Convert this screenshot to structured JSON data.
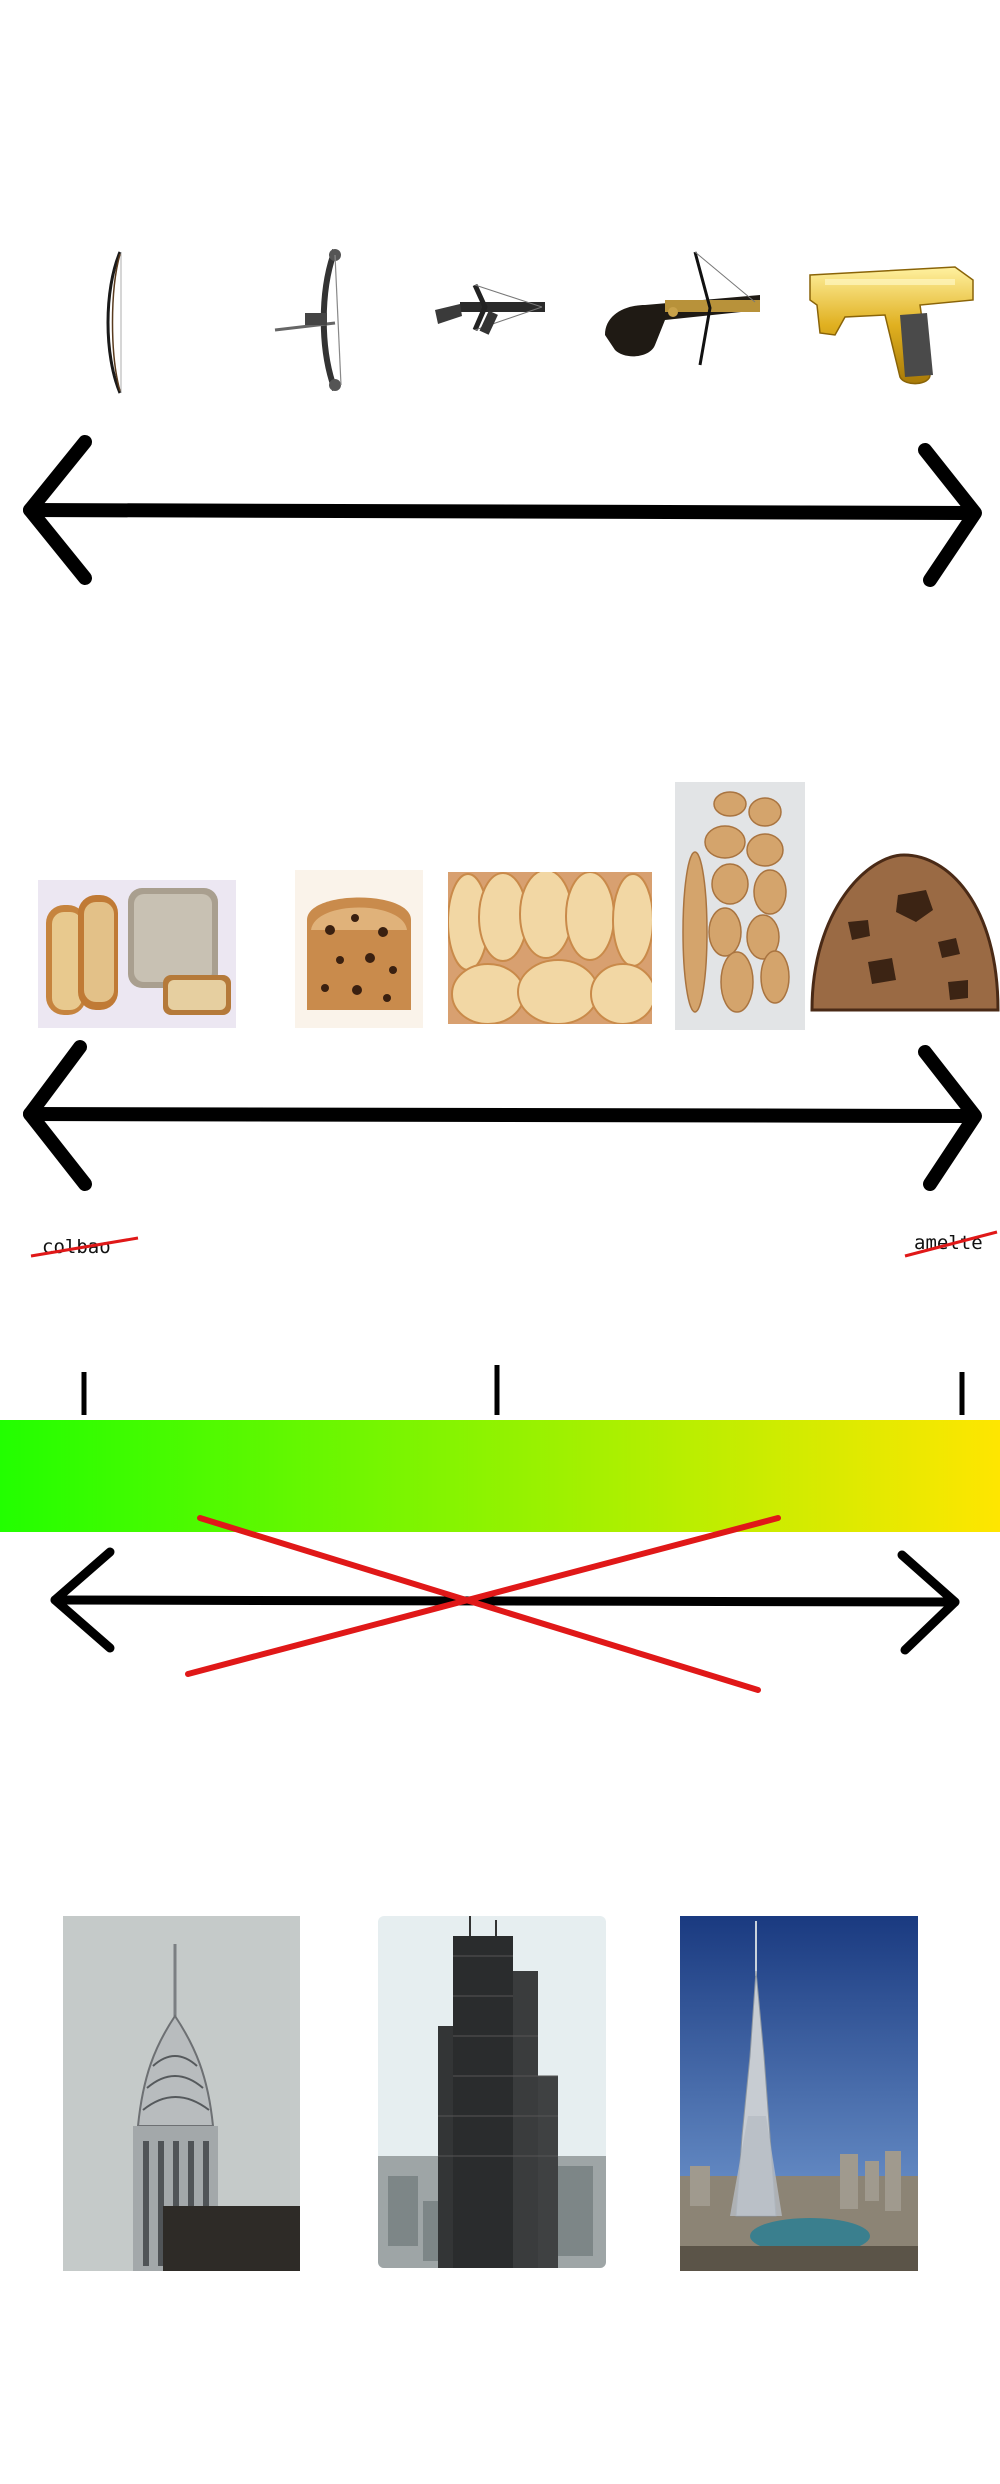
{
  "weapons": {
    "items": [
      {
        "name": "longbow"
      },
      {
        "name": "compound-bow"
      },
      {
        "name": "crossbow"
      },
      {
        "name": "pistol-crossbow"
      },
      {
        "name": "golden-pistol"
      }
    ]
  },
  "baked_goods": {
    "items": [
      {
        "name": "sliced-bread"
      },
      {
        "name": "quick-bread-loaf"
      },
      {
        "name": "biscuits"
      },
      {
        "name": "crackers"
      },
      {
        "name": "cookie"
      }
    ],
    "left_label": "colbao",
    "right_label": "amelte"
  },
  "gradient_scale": {
    "start_color": "#22ff00",
    "end_color": "#ffe600",
    "ticks": [
      "left",
      "middle",
      "right"
    ],
    "crossed_out": true
  },
  "buildings": {
    "items": [
      {
        "name": "chrysler-building"
      },
      {
        "name": "willis-tower"
      },
      {
        "name": "burj-khalifa"
      }
    ]
  },
  "colors": {
    "arrow": "#000000",
    "strike": "#e01818"
  }
}
